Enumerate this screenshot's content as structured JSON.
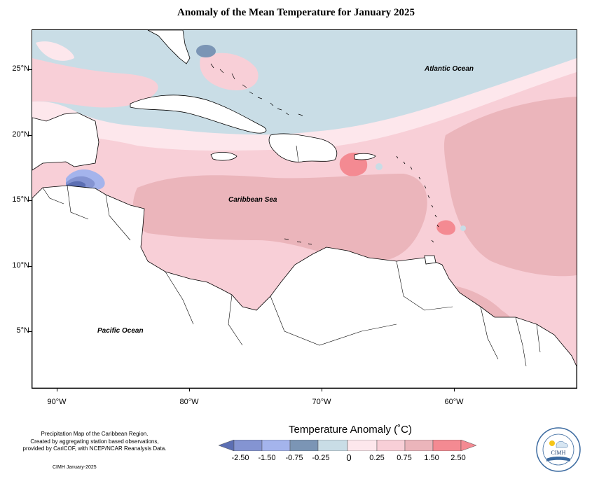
{
  "title": "Anomaly of the Mean Temperature for January 2025",
  "map_extent": {
    "lon_min": -92.0,
    "lon_max": -51.0,
    "lat_min": 0.9,
    "lat_max": 27.9
  },
  "colors": {
    "neg_250": "#5c6fb3",
    "neg_150": "#8494d2",
    "neg_075": "#a4b4ec",
    "neg_025": "#7b95b5",
    "neutral_low": "#c9dde6",
    "neutral_high": "#fde7ec",
    "pos_025": "#f8cfd7",
    "pos_075": "#ebb5bb",
    "pos_150": "#f48a92",
    "land_border": "#000000"
  },
  "ocean_labels": [
    {
      "id": "atlantic",
      "text": "Atlantic Ocean"
    },
    {
      "id": "caribbean",
      "text": "Caribbean Sea"
    },
    {
      "id": "pacific",
      "text": "Pacific Ocean"
    }
  ],
  "lat_ticks": [
    {
      "value": 25,
      "label": "25°N"
    },
    {
      "value": 20,
      "label": "20°N"
    },
    {
      "value": 15,
      "label": "15°N"
    },
    {
      "value": 10,
      "label": "10°N"
    },
    {
      "value": 5,
      "label": "5°N"
    }
  ],
  "lon_ticks": [
    {
      "value": -90,
      "label": "90°W"
    },
    {
      "value": -80,
      "label": "80°W"
    },
    {
      "value": -70,
      "label": "70°W"
    },
    {
      "value": -60,
      "label": "60°W"
    }
  ],
  "legend": {
    "title": "Temperature Anomaly (˚C)",
    "labels": [
      "-2.50",
      "-1.50",
      "-0.75",
      "-0.25",
      "0",
      "0.25",
      "0.75",
      "1.50",
      "2.50"
    ]
  },
  "notes": {
    "line1": "Precipitation Map of the Caribbean Region.",
    "line2": "Created by aggregating station based observations,",
    "line3": "provided by CariCOF, with NCEP/NCAR Reanalysis Data.",
    "credit": "CIMH January-2025"
  },
  "logo": {
    "text": "CIMH"
  }
}
